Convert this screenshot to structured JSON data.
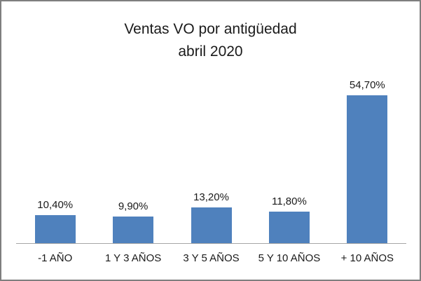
{
  "frame": {
    "border_color": "#7f7f7f",
    "background": "#ffffff"
  },
  "chart_data": {
    "type": "bar",
    "title": "Ventas VO por antigüedad",
    "subtitle": "abril 2020",
    "categories": [
      "-1 AÑO",
      "1 Y 3 AÑOS",
      "3 Y 5 AÑOS",
      "5 Y 10 AÑOS",
      "+ 10 AÑOS"
    ],
    "values": [
      10.4,
      9.9,
      13.2,
      11.8,
      54.7
    ],
    "data_labels": [
      "10,40%",
      "9,90%",
      "13,20%",
      "11,80%",
      "54,70%"
    ],
    "data_labels_position": "outside-end",
    "bar_color": "#4f81bd",
    "axis_color": "#a6a6a6",
    "text_color": "#1a1a1a",
    "xlabel": "",
    "ylabel": "",
    "ylim": [
      0,
      60
    ],
    "grid": false,
    "legend": false
  }
}
